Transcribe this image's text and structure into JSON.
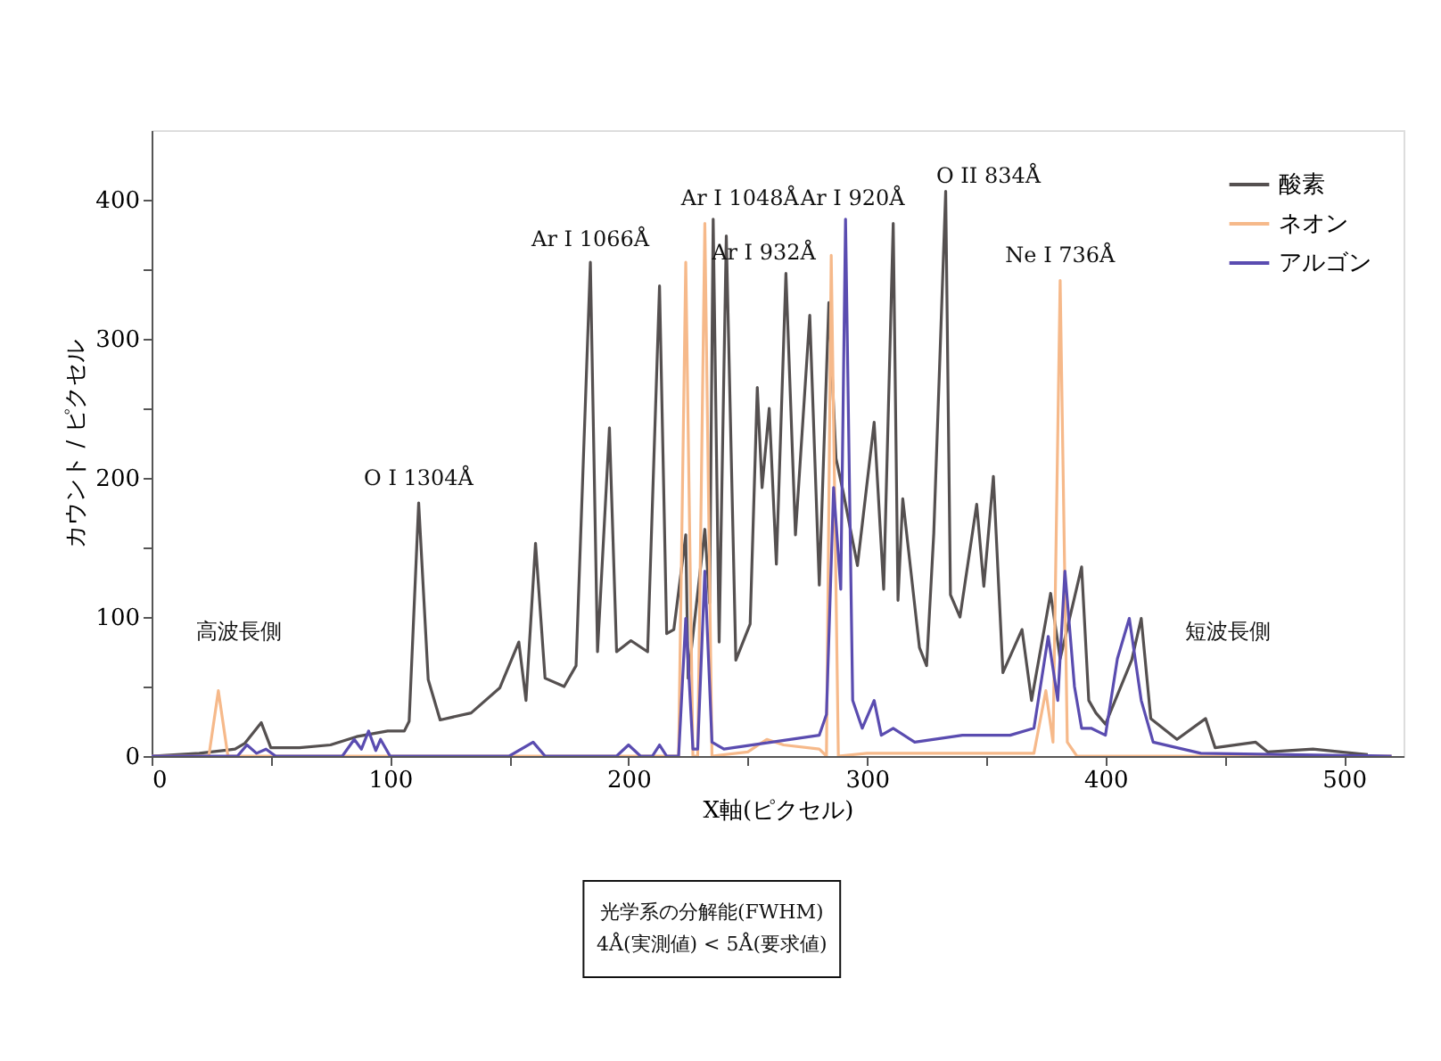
{
  "chart_data": {
    "type": "line",
    "xlabel": "X軸(ピクセル)",
    "ylabel": "カウント / ピクセル",
    "xlim": [
      0,
      525
    ],
    "ylim": [
      0,
      450
    ],
    "xticks": [
      0,
      {
        "value": 50,
        "label": null
      },
      100,
      {
        "value": 150,
        "label": null
      },
      200,
      {
        "value": 250,
        "label": null
      },
      300,
      {
        "value": 350,
        "label": null
      },
      400,
      {
        "value": 450,
        "label": null
      },
      500
    ],
    "yticks": [
      0,
      {
        "value": 50,
        "label": null
      },
      100,
      {
        "value": 150,
        "label": null
      },
      200,
      {
        "value": 250,
        "label": null
      },
      300,
      {
        "value": 350,
        "label": null
      },
      400
    ],
    "legend": "top right",
    "series": [
      {
        "name": "酸素",
        "color": "#555050",
        "x": [
          0,
          20,
          35,
          39,
          46,
          50,
          62,
          75,
          86,
          99,
          106,
          108,
          112,
          116,
          121,
          134,
          146,
          154,
          157,
          161,
          165,
          173,
          178,
          184,
          187,
          192,
          195,
          201,
          208,
          213,
          216,
          219,
          224,
          225,
          232,
          234,
          235.5,
          238,
          241,
          245,
          251,
          254,
          256,
          259,
          262,
          266,
          270,
          276,
          280,
          284,
          287,
          290,
          296,
          303,
          307,
          311,
          313,
          315,
          322,
          325,
          328,
          333,
          335,
          339,
          346,
          349,
          353,
          357,
          365,
          369,
          377,
          381,
          390,
          393,
          396,
          400,
          411,
          415,
          419,
          430,
          442,
          446,
          463,
          468,
          487,
          510
        ],
        "values": [
          0,
          2,
          5,
          9,
          24,
          6,
          6,
          8,
          14,
          18,
          18,
          25,
          182,
          55,
          26,
          31,
          49,
          82,
          40,
          153,
          56,
          50,
          65,
          355,
          75,
          236,
          75,
          83,
          75,
          338,
          88,
          91,
          159,
          56,
          163,
          110,
          386,
          82,
          374,
          69,
          95,
          265,
          193,
          250,
          138,
          347,
          159,
          317,
          123,
          326,
          214,
          190,
          137,
          240,
          120,
          383,
          112,
          185,
          78,
          65,
          160,
          406,
          116,
          100,
          181,
          122,
          201,
          60,
          91,
          40,
          117,
          70,
          136,
          40,
          31,
          23,
          69,
          99,
          27,
          12,
          27,
          6,
          10,
          3,
          5,
          1
        ]
      },
      {
        "name": "ネオン",
        "color": "#f6b98a",
        "x": [
          0,
          24,
          28,
          32,
          60,
          150,
          200,
          221,
          224,
          227,
          229,
          232,
          235,
          250,
          258,
          265,
          280,
          283,
          285,
          288,
          300,
          370,
          375,
          378,
          381,
          384,
          388,
          400,
          520
        ],
        "values": [
          0,
          0,
          47,
          0,
          0,
          0,
          0,
          0,
          355,
          0,
          0,
          383,
          0,
          3,
          12,
          8,
          5,
          0,
          360,
          0,
          2,
          2,
          47,
          10,
          342,
          10,
          0,
          0,
          0
        ]
      },
      {
        "name": "アルゴン",
        "color": "#5a4cb0",
        "x": [
          0,
          36,
          40,
          44,
          48,
          52,
          80,
          85,
          88,
          91,
          94,
          96,
          100,
          150,
          160,
          165,
          195,
          200,
          205,
          210,
          213,
          216,
          221,
          224,
          227,
          229,
          232,
          235,
          240,
          260,
          280,
          283,
          286,
          289,
          291,
          294,
          298,
          303,
          306,
          311,
          320,
          340,
          360,
          370,
          376,
          380,
          383,
          387,
          390,
          394,
          400,
          405,
          410,
          415,
          420,
          440,
          520
        ],
        "values": [
          0,
          0,
          8,
          2,
          5,
          0,
          0,
          12,
          5,
          18,
          4,
          12,
          0,
          0,
          10,
          0,
          0,
          8,
          0,
          0,
          8,
          0,
          0,
          99,
          5,
          5,
          133,
          10,
          5,
          10,
          15,
          30,
          193,
          120,
          386,
          40,
          20,
          40,
          15,
          20,
          10,
          15,
          15,
          20,
          86,
          40,
          133,
          50,
          20,
          20,
          15,
          70,
          99,
          40,
          10,
          2,
          0
        ]
      }
    ],
    "annotations": [
      {
        "text": "O I 1304Å",
        "x": 112,
        "y": 182
      },
      {
        "text": "Ar I 1066Å",
        "x": 184,
        "y": 355
      },
      {
        "text": "Ar I 1048Å",
        "x": 235.5,
        "y": 386
      },
      {
        "text": "Ar I 932Å",
        "x": 241,
        "y": 374
      },
      {
        "text": "Ar I 920Å",
        "x": 291,
        "y": 386
      },
      {
        "text": "O II 834Å",
        "x": 333,
        "y": 406
      },
      {
        "text": "Ne I 736Å",
        "x": 381,
        "y": 342
      },
      "高波長側",
      "短波長側",
      "光学系の分解能(FWHM)\n4Å(実測値) < 5Å(要求値)"
    ]
  }
}
